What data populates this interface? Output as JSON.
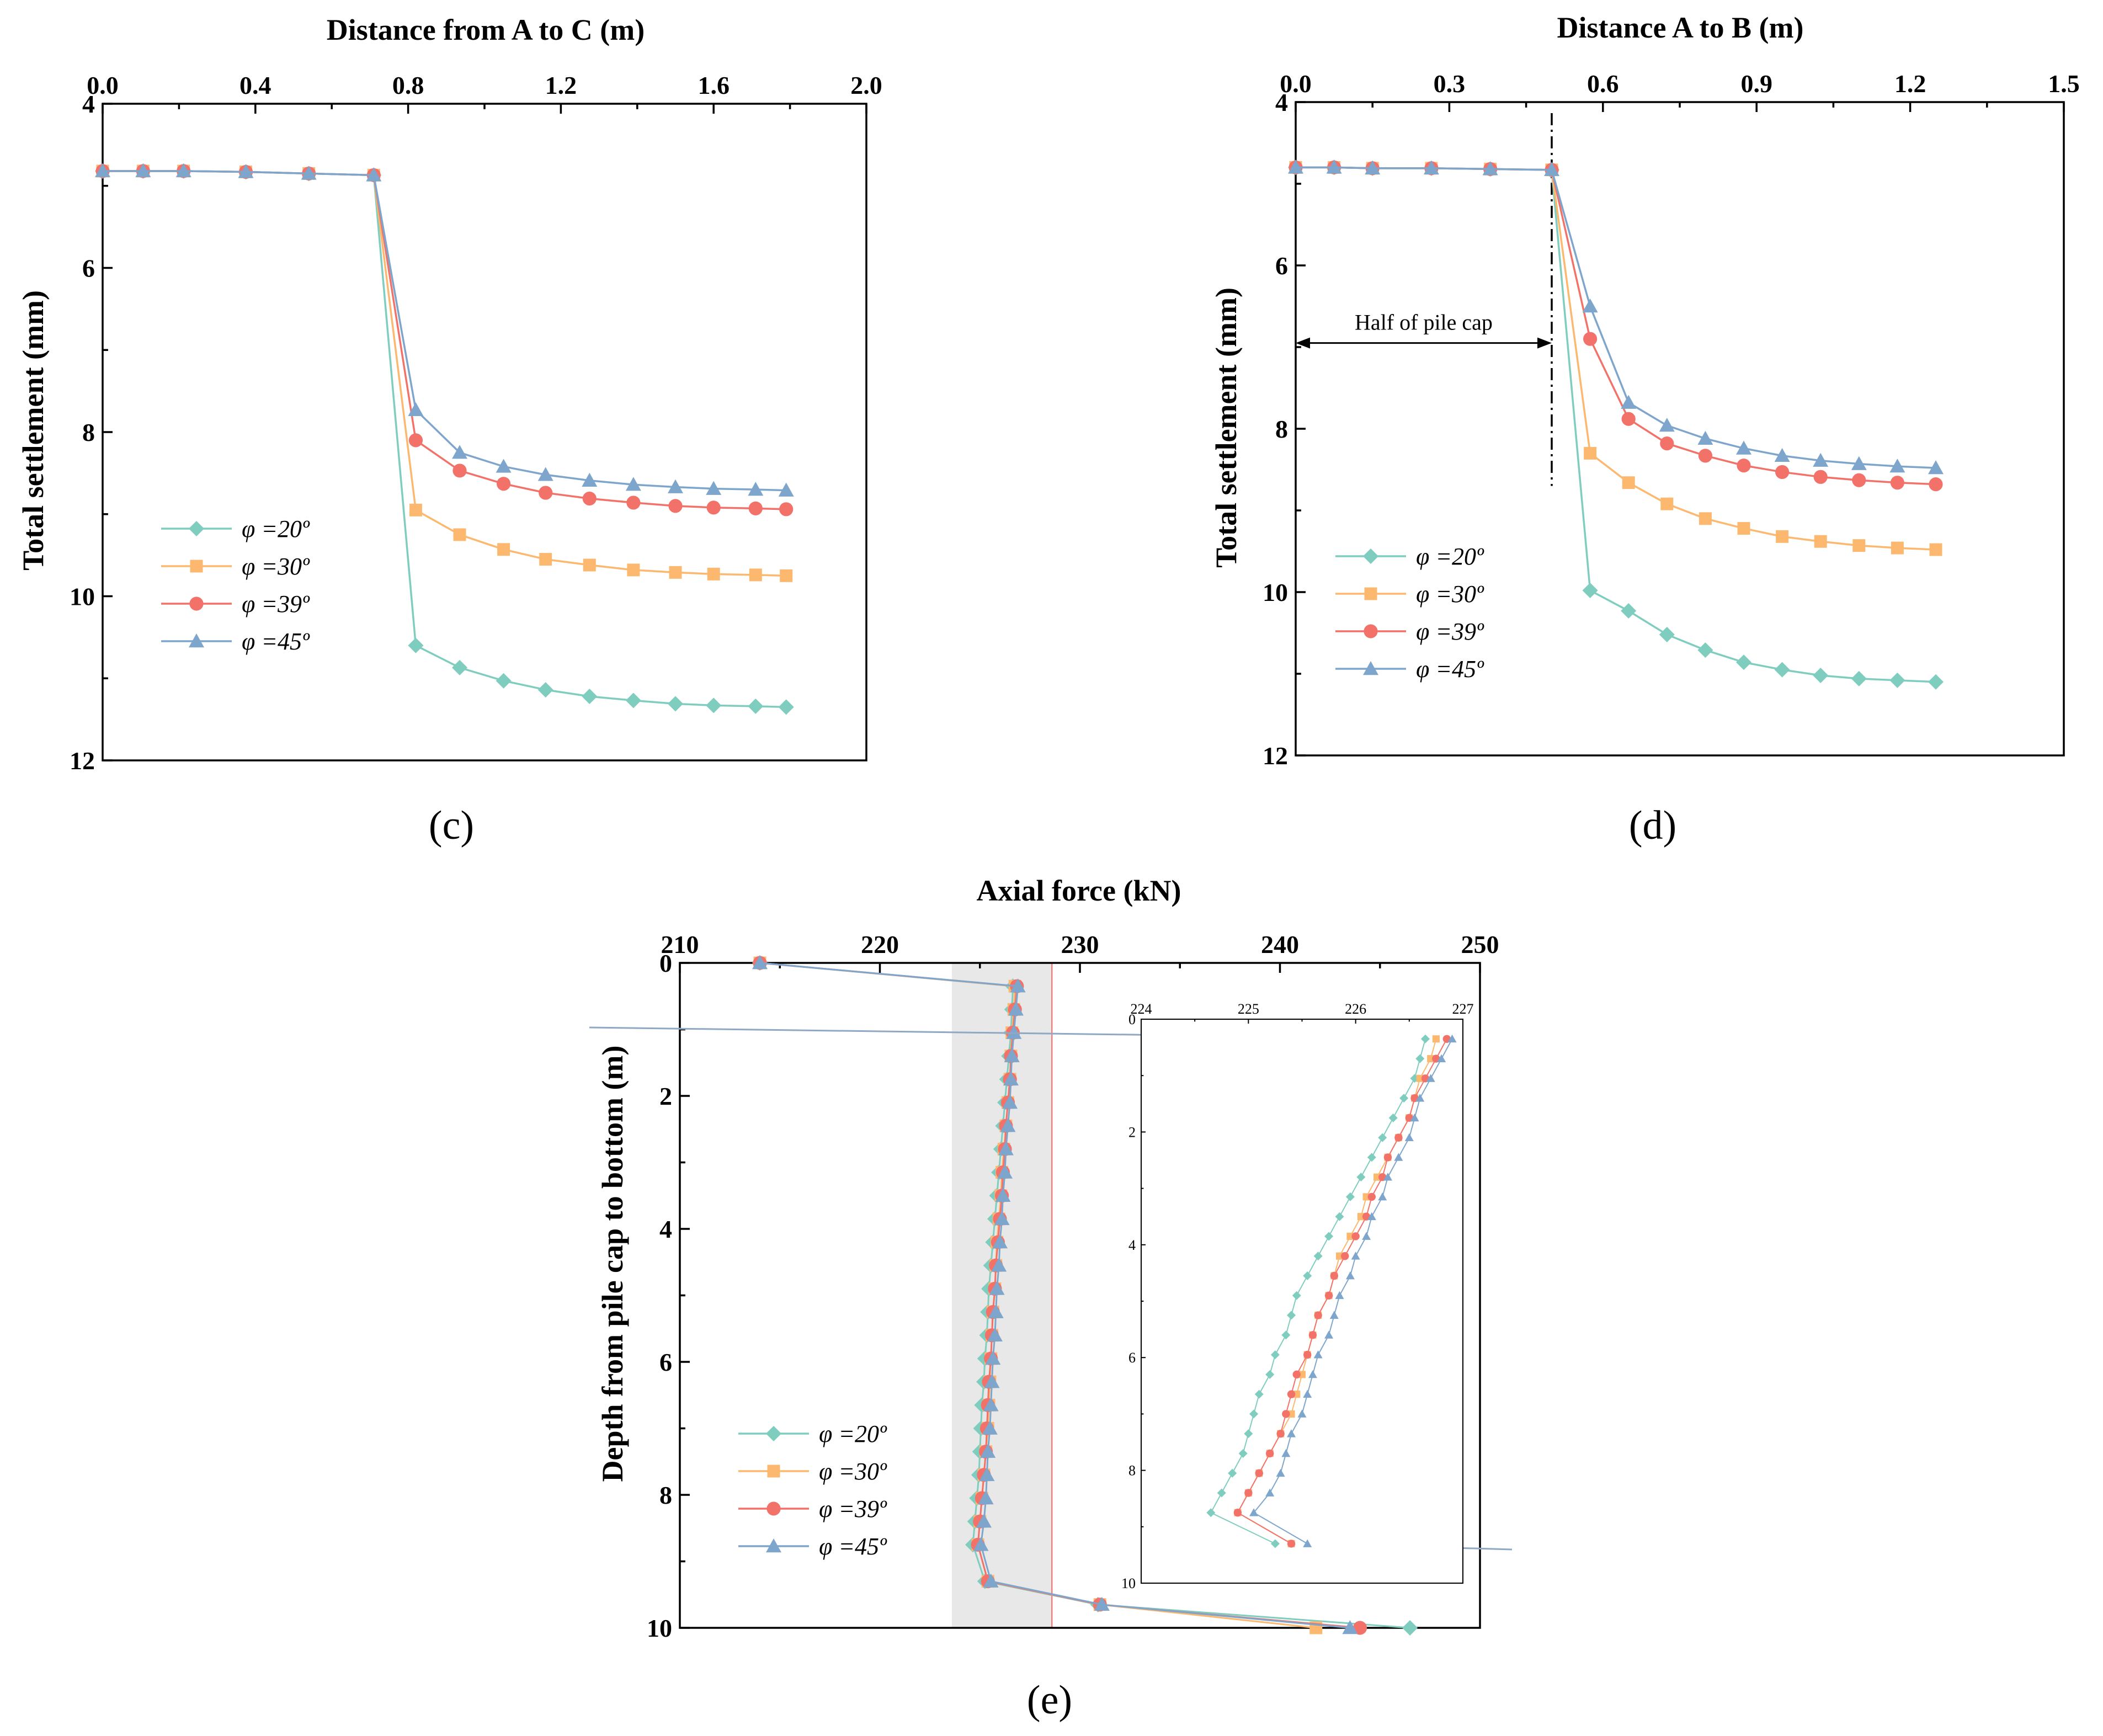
{
  "colors": {
    "phi20": "#7fcdbe",
    "phi30": "#fbb86e",
    "phi39": "#f2726a",
    "phi45": "#7ea6cc",
    "band_fill": "#e8e8e8",
    "band_edge": "#f08080",
    "connector": "#8fa8c4"
  },
  "legend": [
    {
      "key": "phi20",
      "label": "φ =20º",
      "marker": "diamond"
    },
    {
      "key": "phi30",
      "label": "φ =30º",
      "marker": "square"
    },
    {
      "key": "phi39",
      "label": "φ =39º",
      "marker": "circle"
    },
    {
      "key": "phi45",
      "label": "φ =45º",
      "marker": "triangle"
    }
  ],
  "chart_data": [
    {
      "panel": "c",
      "type": "line",
      "panel_label": "(c)",
      "xlabel": "Distance from A to C (m)",
      "ylabel": "Total settlement (mm)",
      "xlim": [
        0.0,
        2.0
      ],
      "ylim": [
        4,
        12
      ],
      "y_inverted": true,
      "x_axis_position": "top",
      "xticks": [
        "0.0",
        "0.4",
        "0.8",
        "1.2",
        "1.6",
        "2.0"
      ],
      "yticks": [
        "4",
        "6",
        "8",
        "10",
        "12"
      ],
      "legend_position": "center-left",
      "x": [
        0.0,
        0.106,
        0.212,
        0.375,
        0.54,
        0.71,
        0.82,
        0.935,
        1.05,
        1.16,
        1.275,
        1.39,
        1.5,
        1.6,
        1.71,
        1.79
      ],
      "series": [
        {
          "name": "φ =20º",
          "key": "phi20",
          "values": [
            4.82,
            4.82,
            4.82,
            4.83,
            4.85,
            4.87,
            10.6,
            10.87,
            11.03,
            11.14,
            11.22,
            11.27,
            11.31,
            11.33,
            11.34,
            11.35
          ]
        },
        {
          "name": "φ =30º",
          "key": "phi30",
          "values": [
            4.82,
            4.82,
            4.82,
            4.83,
            4.85,
            4.87,
            8.95,
            9.25,
            9.43,
            9.55,
            9.62,
            9.68,
            9.71,
            9.73,
            9.74,
            9.75
          ]
        },
        {
          "name": "φ =39º",
          "key": "phi39",
          "values": [
            4.82,
            4.82,
            4.82,
            4.83,
            4.85,
            4.87,
            8.1,
            8.47,
            8.63,
            8.74,
            8.81,
            8.86,
            8.9,
            8.92,
            8.93,
            8.94
          ]
        },
        {
          "name": "φ =45º",
          "key": "phi45",
          "values": [
            4.82,
            4.82,
            4.82,
            4.83,
            4.85,
            4.87,
            7.73,
            8.25,
            8.42,
            8.52,
            8.59,
            8.64,
            8.67,
            8.69,
            8.7,
            8.71
          ]
        }
      ]
    },
    {
      "panel": "d",
      "type": "line",
      "panel_label": "(d)",
      "xlabel": "Distance A to B (m)",
      "ylabel": "Total settlement (mm)",
      "xlim": [
        0.0,
        1.5
      ],
      "ylim": [
        4,
        12
      ],
      "y_inverted": true,
      "x_axis_position": "top",
      "xticks": [
        "0.0",
        "0.3",
        "0.6",
        "0.9",
        "1.2",
        "1.5"
      ],
      "yticks": [
        "4",
        "6",
        "8",
        "10",
        "12"
      ],
      "legend_position": "bottom-left",
      "annotation": {
        "text": "Half of pile cap",
        "x_start": 0.0,
        "x_end": 0.5,
        "y": 6.95,
        "divider_x": 0.5,
        "divider_y_end": 8.7
      },
      "x": [
        0.0,
        0.075,
        0.15,
        0.265,
        0.38,
        0.5,
        0.575,
        0.65,
        0.725,
        0.8,
        0.875,
        0.95,
        1.025,
        1.1,
        1.175,
        1.25
      ],
      "series": [
        {
          "name": "φ =20º",
          "key": "phi20",
          "values": [
            4.8,
            4.8,
            4.81,
            4.81,
            4.82,
            4.83,
            9.98,
            10.23,
            10.52,
            10.71,
            10.86,
            10.95,
            11.02,
            11.06,
            11.08,
            11.1
          ]
        },
        {
          "name": "φ =30º",
          "key": "phi30",
          "values": [
            4.8,
            4.8,
            4.81,
            4.81,
            4.82,
            4.83,
            8.3,
            8.66,
            8.92,
            9.1,
            9.22,
            9.32,
            9.38,
            9.43,
            9.46,
            9.48
          ]
        },
        {
          "name": "φ =39º",
          "key": "phi39",
          "values": [
            4.8,
            4.8,
            4.81,
            4.81,
            4.82,
            4.83,
            6.9,
            7.88,
            8.18,
            8.33,
            8.45,
            8.53,
            8.59,
            8.63,
            8.66,
            8.68
          ]
        },
        {
          "name": "φ =45º",
          "key": "phi45",
          "values": [
            4.8,
            4.8,
            4.81,
            4.81,
            4.82,
            4.83,
            6.5,
            7.68,
            7.96,
            8.12,
            8.24,
            8.33,
            8.39,
            8.43,
            8.46,
            8.48
          ]
        }
      ]
    },
    {
      "panel": "e",
      "type": "line",
      "panel_label": "(e)",
      "xlabel": "Axial force (kN)",
      "ylabel": "Depth from pile cap to bottom (m)",
      "xlim": [
        210,
        250
      ],
      "ylim": [
        0,
        10
      ],
      "y_inverted": true,
      "x_axis_position": "top",
      "xticks": [
        "210",
        "220",
        "230",
        "240",
        "250"
      ],
      "yticks": [
        "0",
        "2",
        "4",
        "6",
        "8",
        "10"
      ],
      "legend_position": "bottom-left",
      "highlight_band_x": [
        223.6,
        228.6
      ],
      "depths": [
        0,
        0.35,
        0.7,
        1.05,
        1.4,
        1.75,
        2.1,
        2.45,
        2.8,
        3.15,
        3.5,
        3.85,
        4.2,
        4.55,
        4.9,
        5.25,
        5.6,
        5.95,
        6.3,
        6.65,
        7.0,
        7.35,
        7.7,
        8.05,
        8.4,
        8.75,
        9.3,
        9.65,
        10.0
      ],
      "series": [
        {
          "name": "φ =20º",
          "key": "phi20",
          "values": [
            214.0,
            226.65,
            226.6,
            226.55,
            226.45,
            226.35,
            226.25,
            226.15,
            226.05,
            225.95,
            225.85,
            225.75,
            225.65,
            225.55,
            225.45,
            225.4,
            225.35,
            225.25,
            225.2,
            225.1,
            225.05,
            225.0,
            224.95,
            224.85,
            224.75,
            224.65,
            225.25,
            230.9,
            246.5
          ]
        },
        {
          "name": "φ =30º",
          "key": "phi30",
          "values": [
            214.0,
            226.75,
            226.7,
            226.6,
            226.55,
            226.5,
            226.4,
            226.3,
            226.2,
            226.1,
            226.05,
            225.95,
            225.85,
            225.8,
            225.75,
            225.65,
            225.6,
            225.55,
            225.5,
            225.45,
            225.4,
            225.3,
            225.2,
            225.1,
            225.0,
            224.9,
            225.4,
            231.0,
            241.8
          ]
        },
        {
          "name": "φ =39º",
          "key": "phi39",
          "values": [
            214.0,
            226.85,
            226.75,
            226.65,
            226.55,
            226.5,
            226.4,
            226.3,
            226.25,
            226.15,
            226.1,
            226.0,
            225.9,
            225.8,
            225.75,
            225.65,
            225.6,
            225.55,
            225.45,
            225.4,
            225.35,
            225.3,
            225.2,
            225.1,
            225.0,
            224.9,
            225.4,
            231.0,
            244.0
          ]
        },
        {
          "name": "φ =45º",
          "key": "phi45",
          "values": [
            214.0,
            226.9,
            226.8,
            226.7,
            226.6,
            226.55,
            226.5,
            226.4,
            226.3,
            226.25,
            226.15,
            226.1,
            226.0,
            225.95,
            225.85,
            225.8,
            225.75,
            225.65,
            225.6,
            225.55,
            225.5,
            225.4,
            225.35,
            225.3,
            225.2,
            225.05,
            225.55,
            231.1,
            243.5
          ]
        }
      ],
      "inset": {
        "xlim": [
          224,
          227
        ],
        "ylim": [
          0,
          10
        ],
        "y_inverted": true,
        "xticks": [
          "224",
          "225",
          "226",
          "227"
        ],
        "yticks": [
          "0",
          "2",
          "4",
          "6",
          "8",
          "10"
        ],
        "start_index": 1,
        "end_index": 26
      }
    }
  ]
}
